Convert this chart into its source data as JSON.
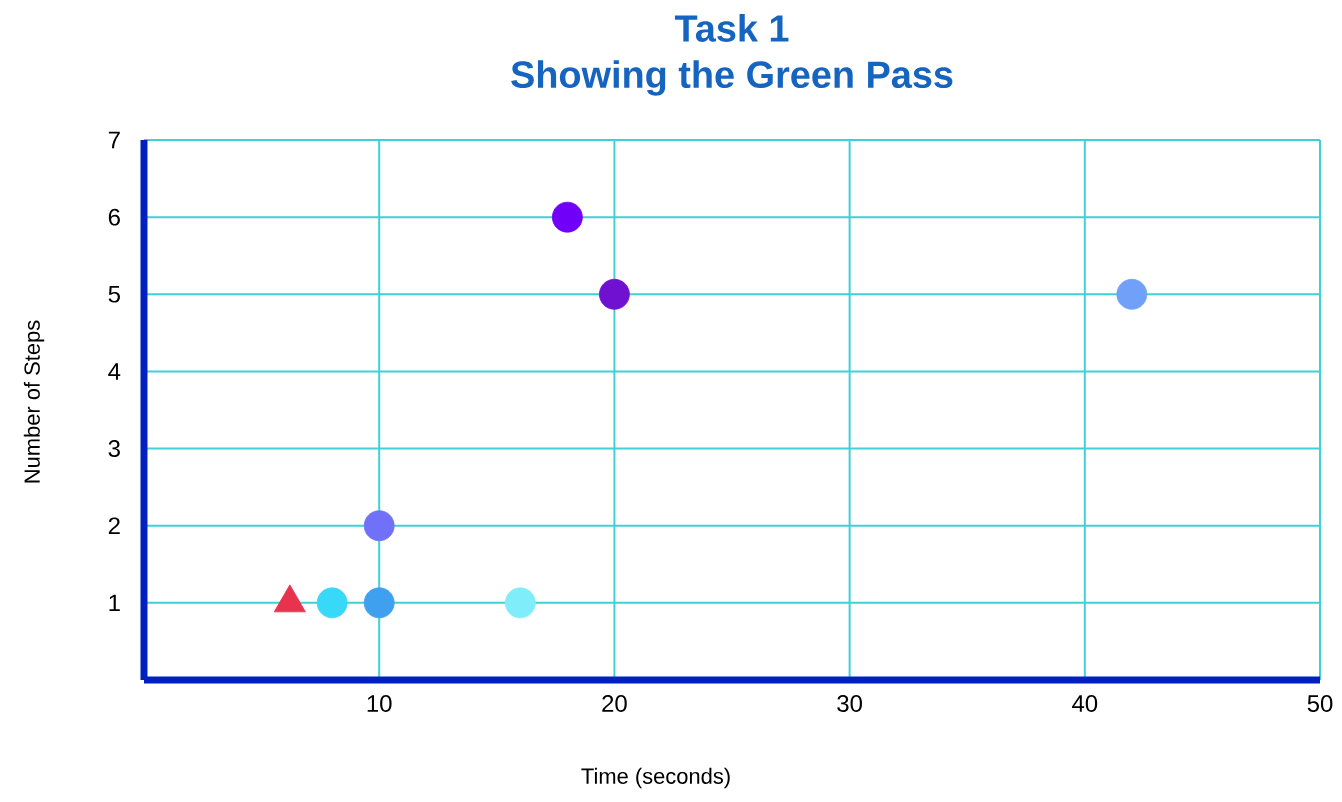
{
  "chart_data": {
    "type": "scatter",
    "title": "Task 1",
    "subtitle": "Showing the Green Pass",
    "xlabel": "Time (seconds)",
    "ylabel": "Number of Steps",
    "xlim": [
      0,
      50
    ],
    "xticks": [
      10,
      20,
      30,
      40,
      50
    ],
    "ylim": [
      0,
      7
    ],
    "yticks": [
      1,
      2,
      3,
      4,
      5,
      6,
      7
    ],
    "grid": true,
    "series": [
      {
        "marker": "triangle",
        "color": "#e8334f",
        "x": [
          6.2
        ],
        "values": [
          1
        ]
      },
      {
        "marker": "circle",
        "colors": [
          "#38d8f8",
          "#3fa0f0",
          "#80eefa",
          "#7070f8",
          "#7000f8",
          "#7010d0",
          "#70a0f8"
        ],
        "x": [
          8,
          10,
          16,
          10,
          18,
          20,
          42
        ],
        "values": [
          1,
          1,
          1,
          2,
          6,
          5,
          5
        ]
      }
    ]
  }
}
